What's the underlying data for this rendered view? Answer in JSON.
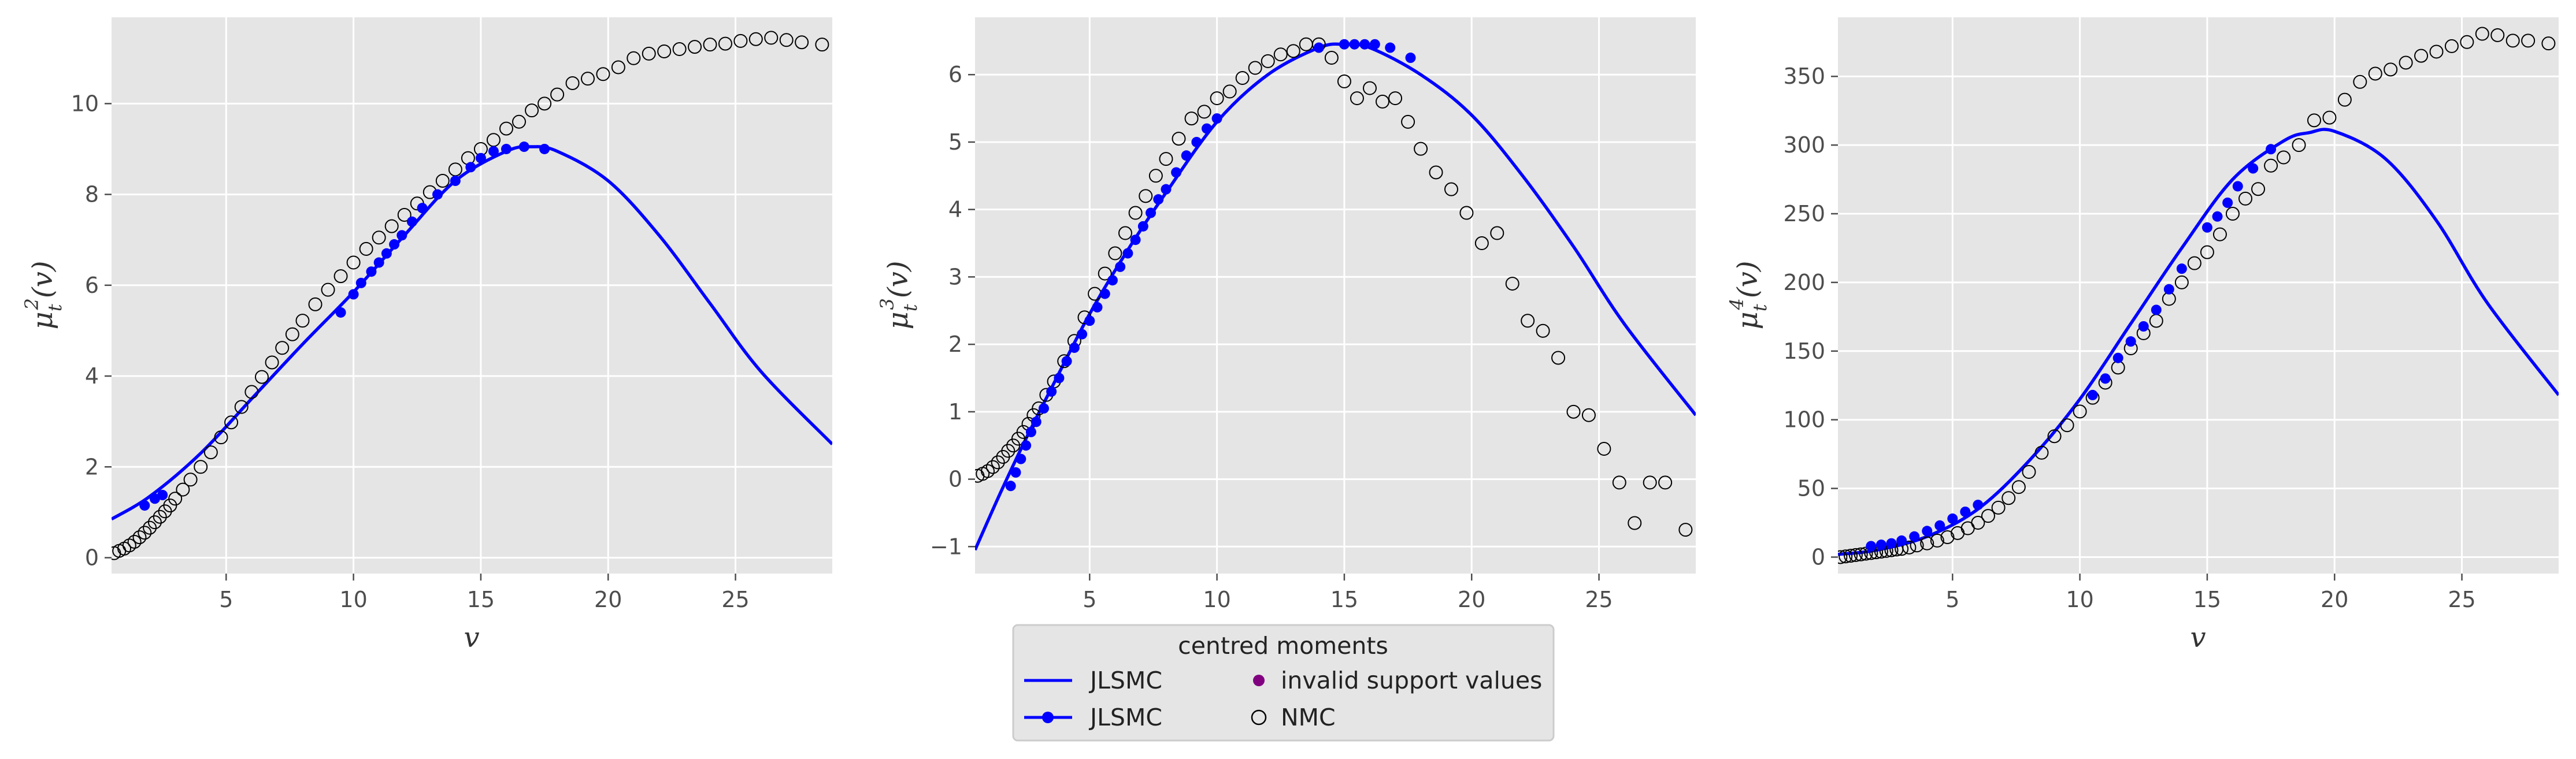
{
  "colors": {
    "panel_bg": "#e5e5e5",
    "grid": "#ffffff",
    "jlsmc": "#0000ff",
    "invalid": "#800080",
    "nmc_edge": "#000000",
    "tick_text": "#4d4d4d"
  },
  "legend": {
    "title": "centred moments",
    "entries": [
      {
        "label": "JLSMC",
        "style": "line"
      },
      {
        "label": "JLSMC",
        "style": "line-marker"
      },
      {
        "label": "invalid support values",
        "style": "dot"
      },
      {
        "label": "NMC",
        "style": "open-circle"
      }
    ]
  },
  "chart_data": [
    {
      "type": "line",
      "xlabel": "v",
      "ylabel_main": "μ",
      "ylabel_sub": "t",
      "ylabel_sup": "2",
      "ylabel_tail": "(v)",
      "xlim": [
        0.5,
        28.8
      ],
      "ylim": [
        -0.35,
        11.9
      ],
      "xticks": [
        5,
        10,
        15,
        20,
        25
      ],
      "yticks": [
        0,
        2,
        4,
        6,
        8,
        10
      ],
      "curve": {
        "name": "JLSMC",
        "x": [
          0.5,
          2,
          4,
          6,
          8,
          10,
          12,
          14,
          16,
          17,
          18,
          20,
          22,
          24,
          26,
          28.8
        ],
        "y": [
          0.85,
          1.35,
          2.3,
          3.5,
          4.7,
          5.85,
          7.1,
          8.3,
          8.95,
          9.05,
          8.95,
          8.3,
          7.1,
          5.6,
          4.1,
          2.5
        ]
      },
      "markers": {
        "name": "JLSMC",
        "x": [
          1.8,
          2.2,
          2.5,
          9.5,
          10,
          10.3,
          10.7,
          11,
          11.3,
          11.6,
          11.9,
          12.3,
          12.7,
          13.3,
          14,
          14.6,
          15,
          15.5,
          16,
          16.7,
          17.5
        ],
        "y": [
          1.15,
          1.3,
          1.38,
          5.4,
          5.8,
          6.05,
          6.3,
          6.5,
          6.7,
          6.9,
          7.1,
          7.4,
          7.7,
          8.0,
          8.3,
          8.6,
          8.8,
          8.95,
          9.0,
          9.05,
          9.0
        ]
      },
      "nmc": {
        "name": "NMC",
        "x": [
          0.6,
          0.8,
          1.0,
          1.2,
          1.4,
          1.6,
          1.8,
          2.0,
          2.2,
          2.4,
          2.6,
          2.8,
          3.0,
          3.3,
          3.6,
          4.0,
          4.4,
          4.8,
          5.2,
          5.6,
          6.0,
          6.4,
          6.8,
          7.2,
          7.6,
          8.0,
          8.5,
          9.0,
          9.5,
          10.0,
          10.5,
          11.0,
          11.5,
          12.0,
          12.5,
          13.0,
          13.5,
          14.0,
          14.5,
          15.0,
          15.5,
          16.0,
          16.5,
          17.0,
          17.5,
          18.0,
          18.6,
          19.2,
          19.8,
          20.4,
          21.0,
          21.6,
          22.2,
          22.8,
          23.4,
          24.0,
          24.6,
          25.2,
          25.8,
          26.4,
          27.0,
          27.6,
          28.4
        ],
        "y": [
          0.1,
          0.15,
          0.2,
          0.27,
          0.35,
          0.45,
          0.55,
          0.66,
          0.78,
          0.9,
          1.02,
          1.15,
          1.3,
          1.5,
          1.72,
          2.0,
          2.32,
          2.65,
          2.98,
          3.32,
          3.65,
          3.98,
          4.3,
          4.62,
          4.92,
          5.22,
          5.58,
          5.9,
          6.2,
          6.5,
          6.8,
          7.05,
          7.3,
          7.55,
          7.8,
          8.05,
          8.3,
          8.55,
          8.8,
          9.0,
          9.2,
          9.45,
          9.6,
          9.85,
          10.0,
          10.2,
          10.45,
          10.55,
          10.65,
          10.8,
          11.0,
          11.1,
          11.15,
          11.2,
          11.25,
          11.3,
          11.32,
          11.38,
          11.42,
          11.45,
          11.4,
          11.35,
          11.3
        ]
      }
    },
    {
      "type": "line",
      "xlabel": "",
      "ylabel_main": "μ",
      "ylabel_sub": "t",
      "ylabel_sup": "3",
      "ylabel_tail": "(v)",
      "xlim": [
        0.5,
        28.8
      ],
      "ylim": [
        -1.4,
        6.85
      ],
      "xticks": [
        5,
        10,
        15,
        20,
        25
      ],
      "yticks": [
        -1,
        0,
        1,
        2,
        3,
        4,
        5,
        6
      ],
      "curve": {
        "name": "JLSMC",
        "x": [
          0.5,
          1.5,
          2.5,
          3.5,
          5,
          6.5,
          8,
          10,
          12,
          14,
          15,
          16,
          18,
          20,
          22,
          24,
          26,
          28.8
        ],
        "y": [
          -1.05,
          -0.2,
          0.6,
          1.35,
          2.45,
          3.4,
          4.25,
          5.3,
          6.0,
          6.4,
          6.45,
          6.4,
          6.0,
          5.4,
          4.5,
          3.45,
          2.3,
          0.95
        ]
      },
      "markers": {
        "name": "JLSMC",
        "x": [
          1.9,
          2.1,
          2.3,
          2.5,
          2.7,
          2.9,
          3.2,
          3.5,
          3.8,
          4.1,
          4.4,
          4.7,
          5.0,
          5.3,
          5.6,
          5.9,
          6.2,
          6.5,
          6.8,
          7.1,
          7.4,
          7.7,
          8.0,
          8.4,
          8.8,
          9.2,
          9.6,
          10.0,
          14.0,
          15.0,
          15.4,
          15.8,
          16.2,
          16.8,
          17.6
        ],
        "y": [
          -0.1,
          0.1,
          0.3,
          0.5,
          0.7,
          0.85,
          1.05,
          1.3,
          1.5,
          1.75,
          1.95,
          2.15,
          2.35,
          2.55,
          2.75,
          2.95,
          3.15,
          3.35,
          3.55,
          3.75,
          3.95,
          4.15,
          4.3,
          4.55,
          4.8,
          5.0,
          5.2,
          5.35,
          6.4,
          6.45,
          6.45,
          6.45,
          6.45,
          6.4,
          6.25
        ]
      },
      "nmc": {
        "name": "NMC",
        "x": [
          0.6,
          0.8,
          1.0,
          1.2,
          1.4,
          1.6,
          1.8,
          2.0,
          2.2,
          2.4,
          2.6,
          2.8,
          3.0,
          3.3,
          3.6,
          4.0,
          4.4,
          4.8,
          5.2,
          5.6,
          6.0,
          6.4,
          6.8,
          7.2,
          7.6,
          8.0,
          8.5,
          9.0,
          9.5,
          10.0,
          10.5,
          11.0,
          11.5,
          12.0,
          12.5,
          13.0,
          13.5,
          14.0,
          14.5,
          15.0,
          15.5,
          16.0,
          16.5,
          17.0,
          17.5,
          18.0,
          18.6,
          19.2,
          19.8,
          20.4,
          21.0,
          21.6,
          22.2,
          22.8,
          23.4,
          24.0,
          24.6,
          25.2,
          25.8,
          26.4,
          27.0,
          27.6,
          28.4
        ],
        "y": [
          0.05,
          0.08,
          0.12,
          0.18,
          0.25,
          0.33,
          0.42,
          0.5,
          0.6,
          0.7,
          0.82,
          0.95,
          1.05,
          1.25,
          1.45,
          1.75,
          2.05,
          2.4,
          2.75,
          3.05,
          3.35,
          3.65,
          3.95,
          4.2,
          4.5,
          4.75,
          5.05,
          5.35,
          5.45,
          5.65,
          5.75,
          5.95,
          6.1,
          6.2,
          6.3,
          6.35,
          6.45,
          6.45,
          6.25,
          5.9,
          5.65,
          5.8,
          5.6,
          5.65,
          5.3,
          4.9,
          4.55,
          4.3,
          3.95,
          3.5,
          3.65,
          2.9,
          2.35,
          2.2,
          1.8,
          1.0,
          0.95,
          0.45,
          -0.05,
          -0.65,
          -0.05,
          -0.05,
          -0.75
        ]
      }
    },
    {
      "type": "line",
      "xlabel": "v",
      "ylabel_main": "μ",
      "ylabel_sub": "t",
      "ylabel_sup": "4",
      "ylabel_tail": "(v)",
      "xlim": [
        0.5,
        28.8
      ],
      "ylim": [
        -12,
        393
      ],
      "xticks": [
        5,
        10,
        15,
        20,
        25
      ],
      "yticks": [
        0,
        50,
        100,
        150,
        200,
        250,
        300,
        350
      ],
      "curve": {
        "name": "JLSMC",
        "x": [
          0.5,
          2,
          4,
          6,
          8,
          10,
          12,
          14,
          16,
          18,
          19,
          20,
          22,
          24,
          26,
          28.8
        ],
        "y": [
          2,
          5,
          15,
          35,
          70,
          115,
          170,
          225,
          275,
          303,
          309,
          310,
          290,
          245,
          185,
          118
        ]
      },
      "markers": {
        "name": "JLSMC",
        "x": [
          1.8,
          2.2,
          2.6,
          3.0,
          3.5,
          4.0,
          4.5,
          5.0,
          5.5,
          6.0,
          10.5,
          11.0,
          11.5,
          12.0,
          12.5,
          13.0,
          13.5,
          14.0,
          15.0,
          15.4,
          15.8,
          16.2,
          16.8,
          17.5
        ],
        "y": [
          8,
          9,
          10,
          12,
          15,
          19,
          23,
          28,
          33,
          38,
          118,
          130,
          145,
          157,
          168,
          180,
          195,
          210,
          240,
          248,
          258,
          270,
          283,
          297
        ]
      },
      "nmc": {
        "name": "NMC",
        "x": [
          0.6,
          0.8,
          1.0,
          1.2,
          1.4,
          1.6,
          1.8,
          2.0,
          2.2,
          2.4,
          2.6,
          2.8,
          3.0,
          3.3,
          3.6,
          4.0,
          4.4,
          4.8,
          5.2,
          5.6,
          6.0,
          6.4,
          6.8,
          7.2,
          7.6,
          8.0,
          8.5,
          9.0,
          9.5,
          10.0,
          10.5,
          11.0,
          11.5,
          12.0,
          12.5,
          13.0,
          13.5,
          14.0,
          14.5,
          15.0,
          15.5,
          16.0,
          16.5,
          17.0,
          17.5,
          18.0,
          18.6,
          19.2,
          19.8,
          20.4,
          21.0,
          21.6,
          22.2,
          22.8,
          23.4,
          24.0,
          24.6,
          25.2,
          25.8,
          26.4,
          27.0,
          27.6,
          28.4
        ],
        "y": [
          0,
          0.5,
          1,
          1.5,
          2,
          2.5,
          3,
          3.5,
          4,
          4.5,
          5,
          5.5,
          6,
          7,
          8.5,
          10,
          12,
          14.5,
          17.5,
          21,
          25,
          30,
          36,
          43,
          51,
          62,
          76,
          88,
          96,
          106,
          116,
          127,
          138,
          152,
          163,
          172,
          188,
          200,
          214,
          222,
          235,
          250,
          261,
          268,
          285,
          291,
          300,
          318,
          320,
          333,
          346,
          352,
          355,
          360,
          365,
          368,
          372,
          375,
          381,
          380,
          376,
          376,
          374
        ]
      }
    }
  ]
}
